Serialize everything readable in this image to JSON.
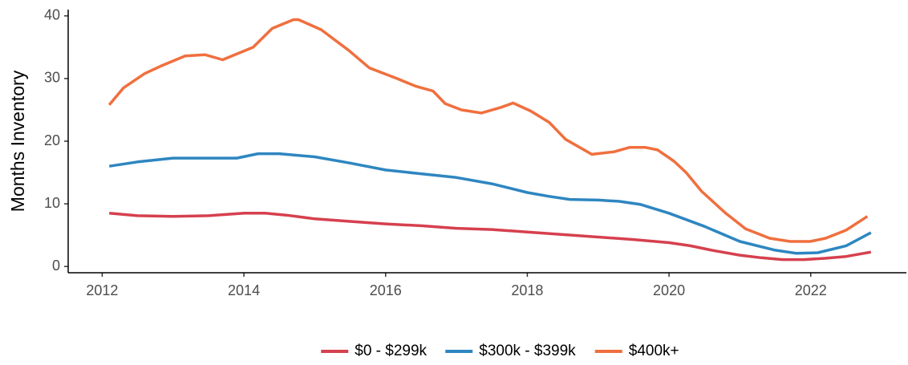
{
  "chart_data": {
    "type": "line",
    "y_label": "Months Inventory",
    "xlim": [
      2011.52,
      2023.35
    ],
    "ylim": [
      -1,
      41
    ],
    "xticks": [
      2012,
      2014,
      2016,
      2018,
      2020,
      2022
    ],
    "yticks": [
      0,
      10,
      20,
      30,
      40
    ],
    "grid": false,
    "legend": "bottom",
    "series": [
      {
        "name": "$0 - $299k",
        "color": "#d6404e",
        "x": [
          2012.1,
          2012.5,
          2013,
          2013.5,
          2014,
          2014.3,
          2014.6,
          2015,
          2015.5,
          2016,
          2016.5,
          2017,
          2017.5,
          2018,
          2018.5,
          2019,
          2019.5,
          2020,
          2020.3,
          2020.6,
          2021,
          2021.3,
          2021.6,
          2021.9,
          2022.2,
          2022.5,
          2022.85
        ],
        "values": [
          8.5,
          8.1,
          8.0,
          8.1,
          8.5,
          8.5,
          8.2,
          7.6,
          7.2,
          6.8,
          6.5,
          6.1,
          5.9,
          5.5,
          5.1,
          4.7,
          4.3,
          3.8,
          3.3,
          2.6,
          1.8,
          1.4,
          1.1,
          1.1,
          1.3,
          1.6,
          2.3
        ]
      },
      {
        "name": "$300k - $399k",
        "color": "#2e86c1",
        "x": [
          2012.1,
          2012.5,
          2013,
          2013.5,
          2013.9,
          2014.2,
          2014.5,
          2015,
          2015.5,
          2016,
          2016.5,
          2017,
          2017.5,
          2018,
          2018.3,
          2018.6,
          2019,
          2019.3,
          2019.6,
          2020,
          2020.5,
          2021,
          2021.5,
          2021.8,
          2022.1,
          2022.5,
          2022.85
        ],
        "values": [
          16,
          16.7,
          17.3,
          17.3,
          17.3,
          18.0,
          18.0,
          17.5,
          16.5,
          15.4,
          14.8,
          14.2,
          13.2,
          11.8,
          11.2,
          10.7,
          10.6,
          10.4,
          9.9,
          8.5,
          6.4,
          4.0,
          2.6,
          2.1,
          2.2,
          3.3,
          5.4
        ]
      },
      {
        "name": "$400k+",
        "color": "#f06f3e",
        "x": [
          2012.1,
          2012.3,
          2012.6,
          2012.83,
          2013.17,
          2013.45,
          2013.7,
          2014.13,
          2014.4,
          2014.7,
          2014.77,
          2015.09,
          2015.48,
          2015.77,
          2016.16,
          2016.42,
          2016.67,
          2016.84,
          2017.07,
          2017.35,
          2017.63,
          2017.8,
          2018.05,
          2018.31,
          2018.54,
          2018.91,
          2019.22,
          2019.44,
          2019.67,
          2019.84,
          2020.07,
          2020.24,
          2020.46,
          2020.8,
          2021.08,
          2021.42,
          2021.71,
          2021.99,
          2022.21,
          2022.5,
          2022.8
        ],
        "values": [
          25.8,
          28.5,
          30.8,
          32.0,
          33.6,
          33.8,
          33.0,
          35.0,
          38.0,
          39.4,
          39.4,
          37.8,
          34.5,
          31.7,
          30.0,
          28.8,
          28.0,
          26.0,
          25.0,
          24.5,
          25.4,
          26.1,
          24.8,
          23.0,
          20.3,
          17.9,
          18.3,
          19.0,
          19.0,
          18.6,
          16.8,
          15.0,
          12.0,
          8.5,
          6.0,
          4.5,
          4.0,
          4.0,
          4.5,
          5.8,
          8.0
        ]
      }
    ]
  }
}
